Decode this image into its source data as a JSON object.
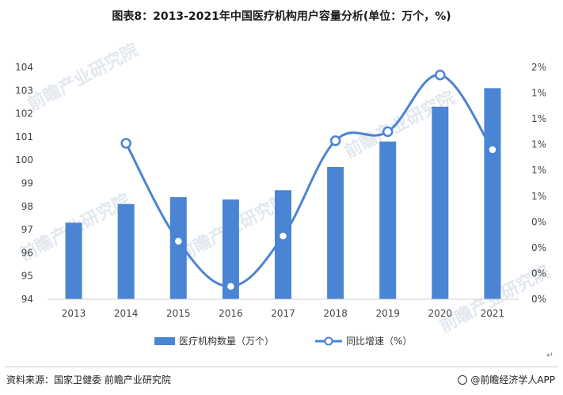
{
  "title": "图表8：2013-2021年中国医疗机构用户容量分析(单位：万个，%)",
  "footer": {
    "source": "资料来源：国家卫健委 前瞻产业研究院",
    "brand": "@前瞻经济学人APP"
  },
  "watermark": "前瞻产业研究院",
  "return_mark": "↵",
  "colors": {
    "bar": "#4a84d4",
    "line": "#4a84d4",
    "marker_fill": "#ffffff"
  },
  "chart_data": {
    "type": "bar",
    "categories": [
      "2013",
      "2014",
      "2015",
      "2016",
      "2017",
      "2018",
      "2019",
      "2020",
      "2021"
    ],
    "series": [
      {
        "name": "医疗机构数量（万个）",
        "type": "bar",
        "axis": "left",
        "values": [
          97.3,
          98.1,
          98.4,
          98.3,
          98.7,
          99.7,
          100.8,
          102.3,
          103.1
        ]
      },
      {
        "name": "同比增速（%）",
        "type": "line",
        "axis": "right",
        "values": [
          null,
          1.01,
          0.25,
          -0.1,
          0.29,
          1.03,
          1.1,
          1.54,
          0.96
        ]
      }
    ],
    "y_left": {
      "ticks": [
        94,
        95,
        96,
        97,
        98,
        99,
        100,
        101,
        102,
        103,
        104
      ],
      "range": [
        94,
        104
      ]
    },
    "y_right": {
      "tick_labels": [
        "0%",
        "0%",
        "0%",
        "0%",
        "1%",
        "1%",
        "1%",
        "1%",
        "1%",
        "2%"
      ],
      "range": [
        -0.2,
        1.6
      ]
    },
    "legend": {
      "position": "bottom"
    },
    "grid": false
  }
}
